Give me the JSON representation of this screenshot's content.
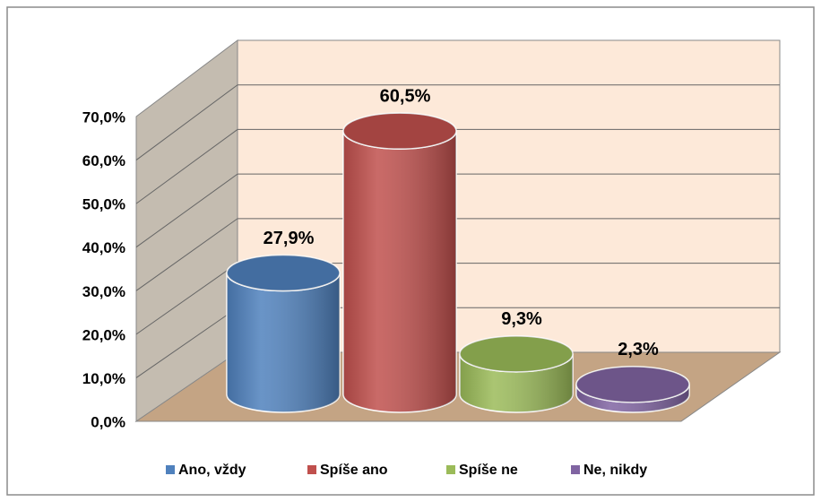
{
  "chart_data": {
    "type": "cylinder",
    "categories": [
      "Ano, vždy",
      "Spíše ano",
      "Spíše ne",
      "Ne, nikdy"
    ],
    "values": [
      27.9,
      60.5,
      9.3,
      2.3
    ],
    "value_labels": [
      "27,9%",
      "60,5%",
      "9,3%",
      "2,3%"
    ],
    "colors": [
      "#4f81bd",
      "#c0504d",
      "#9bbb59",
      "#8064a2"
    ],
    "ylim": [
      0,
      70
    ],
    "yticks": [
      {
        "value": 0,
        "label": "0,0%"
      },
      {
        "value": 10,
        "label": "10,0%"
      },
      {
        "value": 20,
        "label": "20,0%"
      },
      {
        "value": 30,
        "label": "30,0%"
      },
      {
        "value": 40,
        "label": "40,0%"
      },
      {
        "value": 50,
        "label": "50,0%"
      },
      {
        "value": 60,
        "label": "60,0%"
      },
      {
        "value": 70,
        "label": "70,0%"
      }
    ],
    "grid": true,
    "legend": "bottom"
  }
}
